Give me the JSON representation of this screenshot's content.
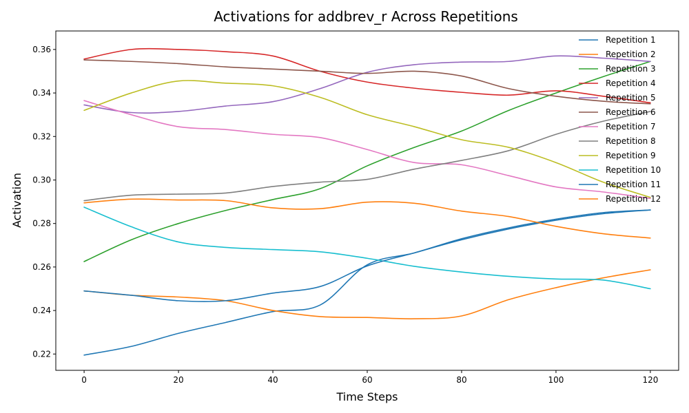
{
  "chart_data": {
    "type": "line",
    "title": "Activations for addbrev_r Across Repetitions",
    "xlabel": "Time Steps",
    "ylabel": "Activation",
    "xlim": [
      -6,
      126
    ],
    "ylim": [
      0.2125,
      0.3685
    ],
    "xticks": [
      0,
      20,
      40,
      60,
      80,
      100,
      120
    ],
    "yticks": [
      0.22,
      0.24,
      0.26,
      0.28,
      0.3,
      0.32,
      0.34,
      0.36
    ],
    "grid": false,
    "legend_position": "top-right",
    "x": [
      0,
      10,
      20,
      30,
      40,
      50,
      60,
      70,
      80,
      90,
      100,
      110,
      120
    ],
    "series": [
      {
        "name": "Repetition 1",
        "color": "#1f77b4",
        "values": [
          0.2195,
          0.2235,
          0.2295,
          0.2345,
          0.2395,
          0.2425,
          0.261,
          0.2665,
          0.273,
          0.278,
          0.282,
          0.285,
          0.2862
        ]
      },
      {
        "name": "Repetition 2",
        "color": "#ff7f0e",
        "values": [
          0.249,
          0.247,
          0.2462,
          0.2445,
          0.24,
          0.2372,
          0.2368,
          0.2362,
          0.2375,
          0.245,
          0.2505,
          0.255,
          0.2587
        ]
      },
      {
        "name": "Repetition 3",
        "color": "#2ca02c",
        "values": [
          0.2625,
          0.2725,
          0.28,
          0.286,
          0.291,
          0.296,
          0.3065,
          0.315,
          0.3225,
          0.332,
          0.34,
          0.3475,
          0.3545
        ]
      },
      {
        "name": "Repetition 4",
        "color": "#d62728",
        "values": [
          0.3556,
          0.36,
          0.36,
          0.359,
          0.357,
          0.35,
          0.345,
          0.3422,
          0.3403,
          0.339,
          0.341,
          0.3385,
          0.3355
        ]
      },
      {
        "name": "Repetition 5",
        "color": "#9467bd",
        "values": [
          0.3345,
          0.331,
          0.3315,
          0.334,
          0.336,
          0.342,
          0.3495,
          0.353,
          0.3542,
          0.3545,
          0.357,
          0.356,
          0.3545
        ]
      },
      {
        "name": "Repetition 6",
        "color": "#8c564b",
        "values": [
          0.3552,
          0.3545,
          0.3535,
          0.352,
          0.351,
          0.35,
          0.349,
          0.35,
          0.3478,
          0.342,
          0.3385,
          0.3362,
          0.335
        ]
      },
      {
        "name": "Repetition 7",
        "color": "#e377c2",
        "values": [
          0.3365,
          0.33,
          0.3245,
          0.3232,
          0.321,
          0.3195,
          0.314,
          0.308,
          0.307,
          0.302,
          0.2968,
          0.2945,
          0.2915
        ]
      },
      {
        "name": "Repetition 8",
        "color": "#7f7f7f",
        "values": [
          0.2905,
          0.293,
          0.2935,
          0.294,
          0.297,
          0.299,
          0.3003,
          0.305,
          0.309,
          0.3135,
          0.321,
          0.327,
          0.3315
        ]
      },
      {
        "name": "Repetition 9",
        "color": "#bcbd22",
        "values": [
          0.332,
          0.34,
          0.3455,
          0.3445,
          0.3433,
          0.338,
          0.33,
          0.3245,
          0.3185,
          0.315,
          0.308,
          0.299,
          0.292
        ]
      },
      {
        "name": "Repetition 10",
        "color": "#17becf",
        "values": [
          0.2875,
          0.2785,
          0.2715,
          0.269,
          0.268,
          0.267,
          0.264,
          0.2603,
          0.2577,
          0.2557,
          0.2545,
          0.254,
          0.25
        ]
      },
      {
        "name": "Repetition 11",
        "color": "#1f77b4",
        "values": [
          0.249,
          0.247,
          0.2445,
          0.2445,
          0.248,
          0.251,
          0.2605,
          0.2665,
          0.2725,
          0.2775,
          0.2815,
          0.2845,
          0.2862
        ]
      },
      {
        "name": "Repetition 12",
        "color": "#ff7f0e",
        "values": [
          0.2895,
          0.2912,
          0.2908,
          0.2905,
          0.2872,
          0.2868,
          0.2898,
          0.2893,
          0.2857,
          0.2832,
          0.2787,
          0.2753,
          0.2733
        ]
      }
    ]
  }
}
